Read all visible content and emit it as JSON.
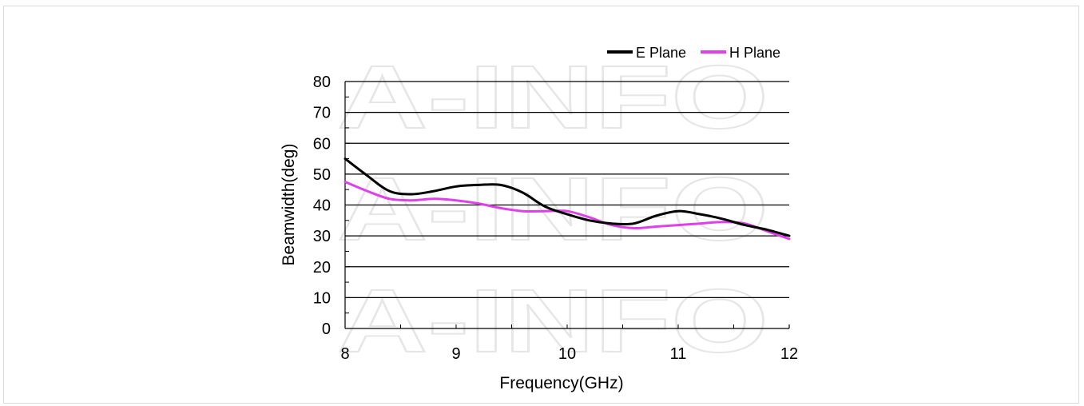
{
  "chart_data": {
    "type": "line",
    "title": "",
    "xlabel": "Frequency(GHz)",
    "ylabel": "Beamwidth(deg)",
    "xlim": [
      8,
      12
    ],
    "ylim": [
      0,
      80
    ],
    "x_ticks": [
      "8",
      "9",
      "10",
      "11",
      "12"
    ],
    "y_ticks": [
      "0",
      "10",
      "20",
      "30",
      "40",
      "50",
      "60",
      "70",
      "80"
    ],
    "grid": "horizontal",
    "legend_position": "top-right",
    "series": [
      {
        "name": "E Plane",
        "color": "#000000",
        "x": [
          8.0,
          8.2,
          8.4,
          8.6,
          8.8,
          9.0,
          9.2,
          9.4,
          9.6,
          9.8,
          10.0,
          10.2,
          10.4,
          10.6,
          10.8,
          11.0,
          11.2,
          11.4,
          11.6,
          11.8,
          12.0
        ],
        "y": [
          55,
          49.5,
          44.5,
          43.5,
          44.5,
          46,
          46.5,
          46.5,
          44,
          39.5,
          37,
          35,
          34,
          34,
          36.5,
          38,
          37,
          35.5,
          33.5,
          32,
          30
        ]
      },
      {
        "name": "H Plane",
        "color": "#e040e8",
        "x": [
          8.0,
          8.2,
          8.4,
          8.6,
          8.8,
          9.0,
          9.2,
          9.4,
          9.6,
          9.8,
          10.0,
          10.2,
          10.4,
          10.6,
          10.8,
          11.0,
          11.2,
          11.4,
          11.6,
          11.8,
          12.0
        ],
        "y": [
          47.5,
          44.5,
          42,
          41.5,
          42,
          41.5,
          40.5,
          39,
          38,
          38,
          38,
          36,
          33.5,
          32.5,
          33,
          33.5,
          34,
          34.5,
          34,
          31.5,
          29
        ]
      }
    ]
  },
  "watermark": {
    "text": "A-INFO"
  }
}
